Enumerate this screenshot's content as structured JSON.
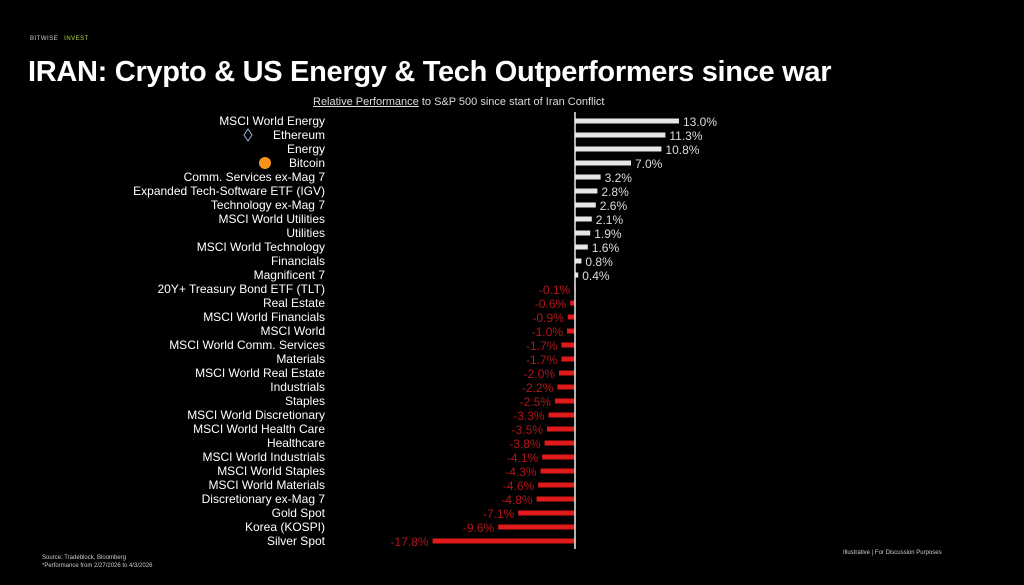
{
  "header": {
    "brand": "BITWISE",
    "brand_tag": "INVEST",
    "title": "IRAN: Crypto & US Energy & Tech Outperformers since war",
    "subtitle_underlined": "Relative Performance",
    "subtitle_rest": " to S&P 500 since start of Iran Conflict"
  },
  "footer": {
    "source": "Source: Tradeblock, Bloomberg",
    "note": "*Performance from 2/27/2026 to 4/3/2026",
    "disclaimer": "Illustrative  |  For Discussion Purposes"
  },
  "chart_data": {
    "type": "bar",
    "orientation": "horizontal",
    "title": "Relative Performance to S&P 500 since start of Iran Conflict",
    "unit": "%",
    "colors": {
      "positive": "#e6e6e6",
      "negative": "#e0191b",
      "background": "#000000"
    },
    "icons": {
      "Ethereum": "ethereum-icon",
      "Bitcoin": "bitcoin-icon"
    },
    "categories": [
      "MSCI World Energy",
      "Ethereum",
      "Energy",
      "Bitcoin",
      "Comm. Services ex-Mag 7",
      "Expanded Tech-Software ETF (IGV)",
      "Technology ex-Mag 7",
      "MSCI World Utilities",
      "Utilities",
      "MSCI World Technology",
      "Financials",
      "Magnificent 7",
      "20Y+ Treasury Bond ETF (TLT)",
      "Real Estate",
      "MSCI World Financials",
      "MSCI World",
      "MSCI World Comm. Services",
      "Materials",
      "MSCI World Real Estate",
      "Industrials",
      "Staples",
      "MSCI World Discretionary",
      "MSCI World Health Care",
      "Healthcare",
      "MSCI World Industrials",
      "MSCI World Staples",
      "MSCI World Materials",
      "Discretionary ex-Mag 7",
      "Gold Spot",
      "Korea (KOSPI)",
      "Silver Spot"
    ],
    "values": [
      13.0,
      11.3,
      10.8,
      7.0,
      3.2,
      2.8,
      2.6,
      2.1,
      1.9,
      1.6,
      0.8,
      0.4,
      -0.1,
      -0.6,
      -0.9,
      -1.0,
      -1.7,
      -1.7,
      -2.0,
      -2.2,
      -2.5,
      -3.3,
      -3.5,
      -3.8,
      -4.1,
      -4.3,
      -4.6,
      -4.8,
      -7.1,
      -9.6,
      -17.8
    ],
    "labels": [
      "13.0%",
      "11.3%",
      "10.8%",
      "7.0%",
      "3.2%",
      "2.8%",
      "2.6%",
      "2.1%",
      "1.9%",
      "1.6%",
      "0.8%",
      "0.4%",
      "-0.1%",
      "-0.6%",
      "-0.9%",
      "-1.0%",
      "-1.7%",
      "-1.7%",
      "-2.0%",
      "-2.2%",
      "-2.5%",
      "-3.3%",
      "-3.5%",
      "-3.8%",
      "-4.1%",
      "-4.3%",
      "-4.6%",
      "-4.8%",
      "-7.1%",
      "-9.6%",
      "-17.8%"
    ]
  }
}
